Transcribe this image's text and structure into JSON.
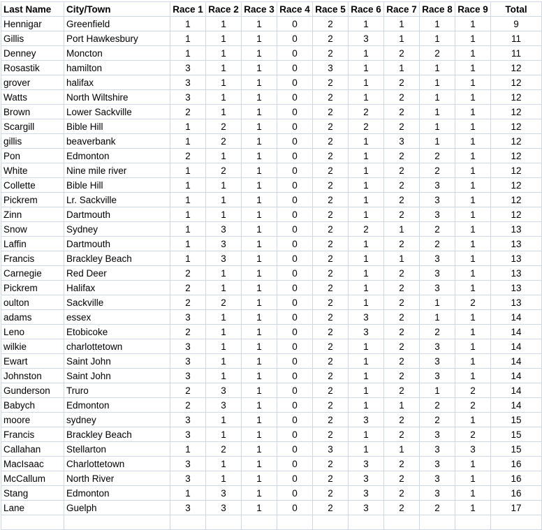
{
  "headers": [
    "Last Name",
    "City/Town",
    "Race 1",
    "Race 2",
    "Race 3",
    "Race 4",
    "Race 5",
    "Race 6",
    "Race 7",
    "Race 8",
    "Race 9",
    "Total"
  ],
  "rows": [
    [
      "Hennigar",
      "Greenfield",
      1,
      1,
      1,
      0,
      2,
      1,
      1,
      1,
      1,
      9
    ],
    [
      "Gillis",
      "Port Hawkesbury",
      1,
      1,
      1,
      0,
      2,
      3,
      1,
      1,
      1,
      11
    ],
    [
      "Denney",
      "Moncton",
      1,
      1,
      1,
      0,
      2,
      1,
      2,
      2,
      1,
      11
    ],
    [
      "Rosastik",
      "hamilton",
      3,
      1,
      1,
      0,
      3,
      1,
      1,
      1,
      1,
      12
    ],
    [
      "grover",
      "halifax",
      3,
      1,
      1,
      0,
      2,
      1,
      2,
      1,
      1,
      12
    ],
    [
      "Watts",
      "North Wiltshire",
      3,
      1,
      1,
      0,
      2,
      1,
      2,
      1,
      1,
      12
    ],
    [
      "Brown",
      "Lower Sackville",
      2,
      1,
      1,
      0,
      2,
      2,
      2,
      1,
      1,
      12
    ],
    [
      "Scargill",
      "Bible Hill",
      1,
      2,
      1,
      0,
      2,
      2,
      2,
      1,
      1,
      12
    ],
    [
      "gillis",
      "beaverbank",
      1,
      2,
      1,
      0,
      2,
      1,
      3,
      1,
      1,
      12
    ],
    [
      "Pon",
      "Edmonton",
      2,
      1,
      1,
      0,
      2,
      1,
      2,
      2,
      1,
      12
    ],
    [
      "White",
      "Nine mile river",
      1,
      2,
      1,
      0,
      2,
      1,
      2,
      2,
      1,
      12
    ],
    [
      "Collette",
      "Bible Hill",
      1,
      1,
      1,
      0,
      2,
      1,
      2,
      3,
      1,
      12
    ],
    [
      "Pickrem",
      "Lr. Sackville",
      1,
      1,
      1,
      0,
      2,
      1,
      2,
      3,
      1,
      12
    ],
    [
      "Zinn",
      "Dartmouth",
      1,
      1,
      1,
      0,
      2,
      1,
      2,
      3,
      1,
      12
    ],
    [
      "Snow",
      "Sydney",
      1,
      3,
      1,
      0,
      2,
      2,
      1,
      2,
      1,
      13
    ],
    [
      "Laffin",
      "Dartmouth",
      1,
      3,
      1,
      0,
      2,
      1,
      2,
      2,
      1,
      13
    ],
    [
      "Francis",
      "Brackley Beach",
      1,
      3,
      1,
      0,
      2,
      1,
      1,
      3,
      1,
      13
    ],
    [
      "Carnegie",
      "Red Deer",
      2,
      1,
      1,
      0,
      2,
      1,
      2,
      3,
      1,
      13
    ],
    [
      "Pickrem",
      "Halifax",
      2,
      1,
      1,
      0,
      2,
      1,
      2,
      3,
      1,
      13
    ],
    [
      "oulton",
      "Sackville",
      2,
      2,
      1,
      0,
      2,
      1,
      2,
      1,
      2,
      13
    ],
    [
      "adams",
      "essex",
      3,
      1,
      1,
      0,
      2,
      3,
      2,
      1,
      1,
      14
    ],
    [
      "Leno",
      "Etobicoke",
      2,
      1,
      1,
      0,
      2,
      3,
      2,
      2,
      1,
      14
    ],
    [
      "wilkie",
      "charlottetown",
      3,
      1,
      1,
      0,
      2,
      1,
      2,
      3,
      1,
      14
    ],
    [
      "Ewart",
      "Saint John",
      3,
      1,
      1,
      0,
      2,
      1,
      2,
      3,
      1,
      14
    ],
    [
      "Johnston",
      "Saint John",
      3,
      1,
      1,
      0,
      2,
      1,
      2,
      3,
      1,
      14
    ],
    [
      "Gunderson",
      "Truro",
      2,
      3,
      1,
      0,
      2,
      1,
      2,
      1,
      2,
      14
    ],
    [
      "Babych",
      "Edmonton",
      2,
      3,
      1,
      0,
      2,
      1,
      1,
      2,
      2,
      14
    ],
    [
      "moore",
      "sydney",
      3,
      1,
      1,
      0,
      2,
      3,
      2,
      2,
      1,
      15
    ],
    [
      "Francis",
      "Brackley Beach",
      3,
      1,
      1,
      0,
      2,
      1,
      2,
      3,
      2,
      15
    ],
    [
      "Callahan",
      "Stellarton",
      1,
      2,
      1,
      0,
      3,
      1,
      1,
      3,
      3,
      15
    ],
    [
      "MacIsaac",
      "Charlottetown",
      3,
      1,
      1,
      0,
      2,
      3,
      2,
      3,
      1,
      16
    ],
    [
      "McCallum",
      "North River",
      3,
      1,
      1,
      0,
      2,
      3,
      2,
      3,
      1,
      16
    ],
    [
      "Stang",
      "Edmonton",
      1,
      3,
      1,
      0,
      2,
      3,
      2,
      3,
      1,
      16
    ],
    [
      "Lane",
      "Guelph",
      3,
      3,
      1,
      0,
      2,
      3,
      2,
      2,
      1,
      17
    ]
  ]
}
